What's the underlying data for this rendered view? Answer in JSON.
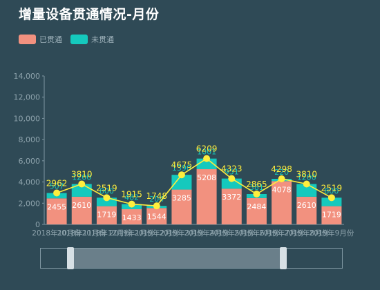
{
  "title": "增量设备贯通情况-月份",
  "legend": [
    {
      "label": "已贯通",
      "color": "#f2917f"
    },
    {
      "label": "未贯通",
      "color": "#15c9bd"
    }
  ],
  "colors": {
    "line": "#ffee3d",
    "axis_text": "#8fa4ad",
    "bar_label_top": "#15c9bd",
    "bar_label_inner": "#ffffff",
    "zoom_fill": "#6a7f8a"
  },
  "chart_data": {
    "type": "bar",
    "title": "增量设备贯通情况-月份",
    "categories": [
      "2018年10月份",
      "2018年11月份",
      "2018年12月份",
      "2019年1月份",
      "2019年2月份",
      "2019年3月份",
      "2019年4月份",
      "2019年5月份",
      "2019年6月份",
      "2019年7月份",
      "2019年8月份",
      "2019年9月份"
    ],
    "series": [
      {
        "name": "已贯通",
        "values": [
          2455,
          2610,
          1719,
          1433,
          1544,
          3285,
          5208,
          3372,
          2484,
          4078,
          2610,
          1719
        ]
      },
      {
        "name": "未贯通",
        "values": [
          507,
          1200,
          800,
          482,
          204,
          1390,
          1001,
          951,
          381,
          220,
          1200,
          800
        ]
      }
    ],
    "line_totals": [
      2962,
      3810,
      2519,
      1915,
      1748,
      4675,
      6209,
      4323,
      2865,
      4298,
      3810,
      2519
    ],
    "stacked": true,
    "ylim": [
      0,
      14000
    ],
    "yticks": [
      "0",
      "2,000",
      "4,000",
      "6,000",
      "8,000",
      "10,000",
      "12,000",
      "14,000"
    ],
    "grid": false,
    "legend_position": "top-left"
  }
}
